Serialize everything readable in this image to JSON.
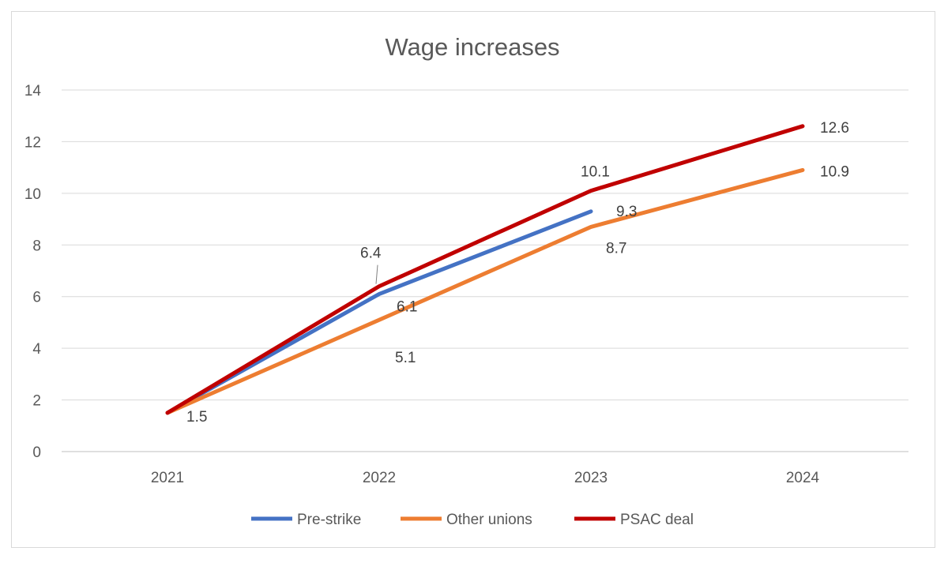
{
  "chart_data": {
    "type": "line",
    "title": "Wage increases",
    "xlabel": "",
    "ylabel": "",
    "categories": [
      "2021",
      "2022",
      "2023",
      "2024"
    ],
    "ylim": [
      0,
      14
    ],
    "yticks": [
      0,
      2,
      4,
      6,
      8,
      10,
      12,
      14
    ],
    "grid": true,
    "legend_position": "bottom",
    "series": [
      {
        "name": "Pre-strike",
        "color": "#4472c4",
        "values": [
          1.5,
          6.1,
          9.3,
          null
        ],
        "labels": [
          "",
          "6.1",
          "9.3",
          ""
        ]
      },
      {
        "name": "Other unions",
        "color": "#ed7d31",
        "values": [
          1.5,
          5.1,
          8.7,
          10.9
        ],
        "labels": [
          "",
          "5.1",
          "8.7",
          "10.9"
        ]
      },
      {
        "name": "PSAC deal",
        "color": "#c00000",
        "values": [
          1.5,
          6.4,
          10.1,
          12.6
        ],
        "labels": [
          "1.5",
          "6.4",
          "10.1",
          "12.6"
        ]
      }
    ]
  }
}
